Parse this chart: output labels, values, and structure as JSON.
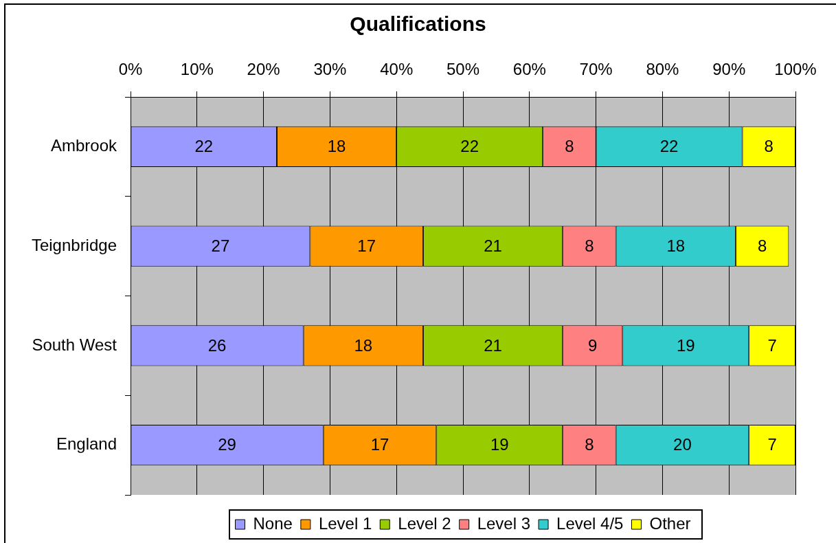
{
  "chart_data": {
    "type": "bar",
    "title": "Qualifications",
    "orientation": "horizontal",
    "stacked": true,
    "categories": [
      "Ambrook",
      "Teignbridge",
      "South West",
      "England"
    ],
    "series": [
      {
        "name": "None",
        "color": "#9999ff",
        "values": [
          22,
          27,
          26,
          29
        ]
      },
      {
        "name": "Level 1",
        "color": "#ff9900",
        "values": [
          18,
          17,
          18,
          17
        ]
      },
      {
        "name": "Level 2",
        "color": "#99cc00",
        "values": [
          22,
          21,
          21,
          19
        ]
      },
      {
        "name": "Level 3",
        "color": "#ff8080",
        "values": [
          8,
          8,
          9,
          8
        ]
      },
      {
        "name": "Level 4/5",
        "color": "#33cccc",
        "values": [
          22,
          18,
          19,
          20
        ]
      },
      {
        "name": "Other",
        "color": "#ffff00",
        "values": [
          8,
          8,
          7,
          7
        ]
      }
    ],
    "xlim": [
      0,
      100
    ],
    "xticks": [
      {
        "value": 0,
        "label": "0%"
      },
      {
        "value": 10,
        "label": "10%"
      },
      {
        "value": 20,
        "label": "20%"
      },
      {
        "value": 30,
        "label": "30%"
      },
      {
        "value": 40,
        "label": "40%"
      },
      {
        "value": 50,
        "label": "50%"
      },
      {
        "value": 60,
        "label": "60%"
      },
      {
        "value": 70,
        "label": "70%"
      },
      {
        "value": 80,
        "label": "80%"
      },
      {
        "value": 90,
        "label": "90%"
      },
      {
        "value": 100,
        "label": "100%"
      }
    ],
    "grid": "x",
    "legend": "bottom",
    "data_labels": true
  }
}
